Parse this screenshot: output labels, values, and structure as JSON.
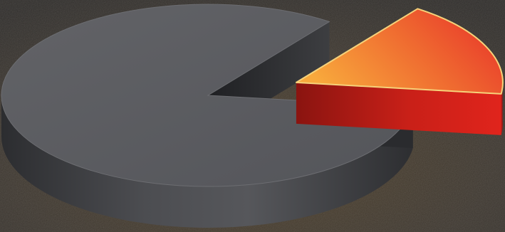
{
  "chart_data": {
    "type": "pie",
    "title": "",
    "style": "3d-exploded",
    "slices": [
      {
        "label": "",
        "value": 0.83,
        "color": "#5a5b5e",
        "exploded": false
      },
      {
        "label": "",
        "value": 0.17,
        "color": "#e8352a",
        "exploded": true
      }
    ]
  },
  "colors": {
    "background": "#3b3731",
    "background_warm": "#4a3a26",
    "main_top": "#5a5b5e",
    "main_side": "#3a3b3e",
    "accent_top_start": "#f7a63b",
    "accent_top_end": "#e8352a",
    "accent_side": "#b71d18",
    "accent_rim": "#f6d27a"
  }
}
